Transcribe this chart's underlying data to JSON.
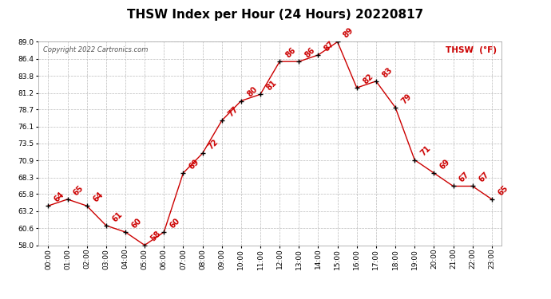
{
  "title": "THSW Index per Hour (24 Hours) 20220817",
  "copyright": "Copyright 2022 Cartronics.com",
  "legend_label": "THSW  (°F)",
  "hours": [
    "00:00",
    "01:00",
    "02:00",
    "03:00",
    "04:00",
    "05:00",
    "06:00",
    "07:00",
    "08:00",
    "09:00",
    "10:00",
    "11:00",
    "12:00",
    "13:00",
    "14:00",
    "15:00",
    "16:00",
    "17:00",
    "18:00",
    "19:00",
    "20:00",
    "21:00",
    "22:00",
    "23:00"
  ],
  "values": [
    64,
    65,
    64,
    61,
    60,
    58,
    60,
    69,
    72,
    77,
    80,
    81,
    86,
    86,
    87,
    89,
    82,
    83,
    79,
    71,
    69,
    67,
    67,
    65
  ],
  "ylim": [
    58.0,
    89.0
  ],
  "yticks": [
    58.0,
    60.6,
    63.2,
    65.8,
    68.3,
    70.9,
    73.5,
    76.1,
    78.7,
    81.2,
    83.8,
    86.4,
    89.0
  ],
  "line_color": "#cc0000",
  "marker_color": "#000000",
  "label_color": "#cc0000",
  "grid_color": "#bbbbbb",
  "bg_color": "#ffffff",
  "title_fontsize": 11,
  "axis_fontsize": 6.5,
  "label_fontsize": 7,
  "copyright_color": "#555555",
  "copyright_fontsize": 6,
  "legend_fontsize": 7.5
}
